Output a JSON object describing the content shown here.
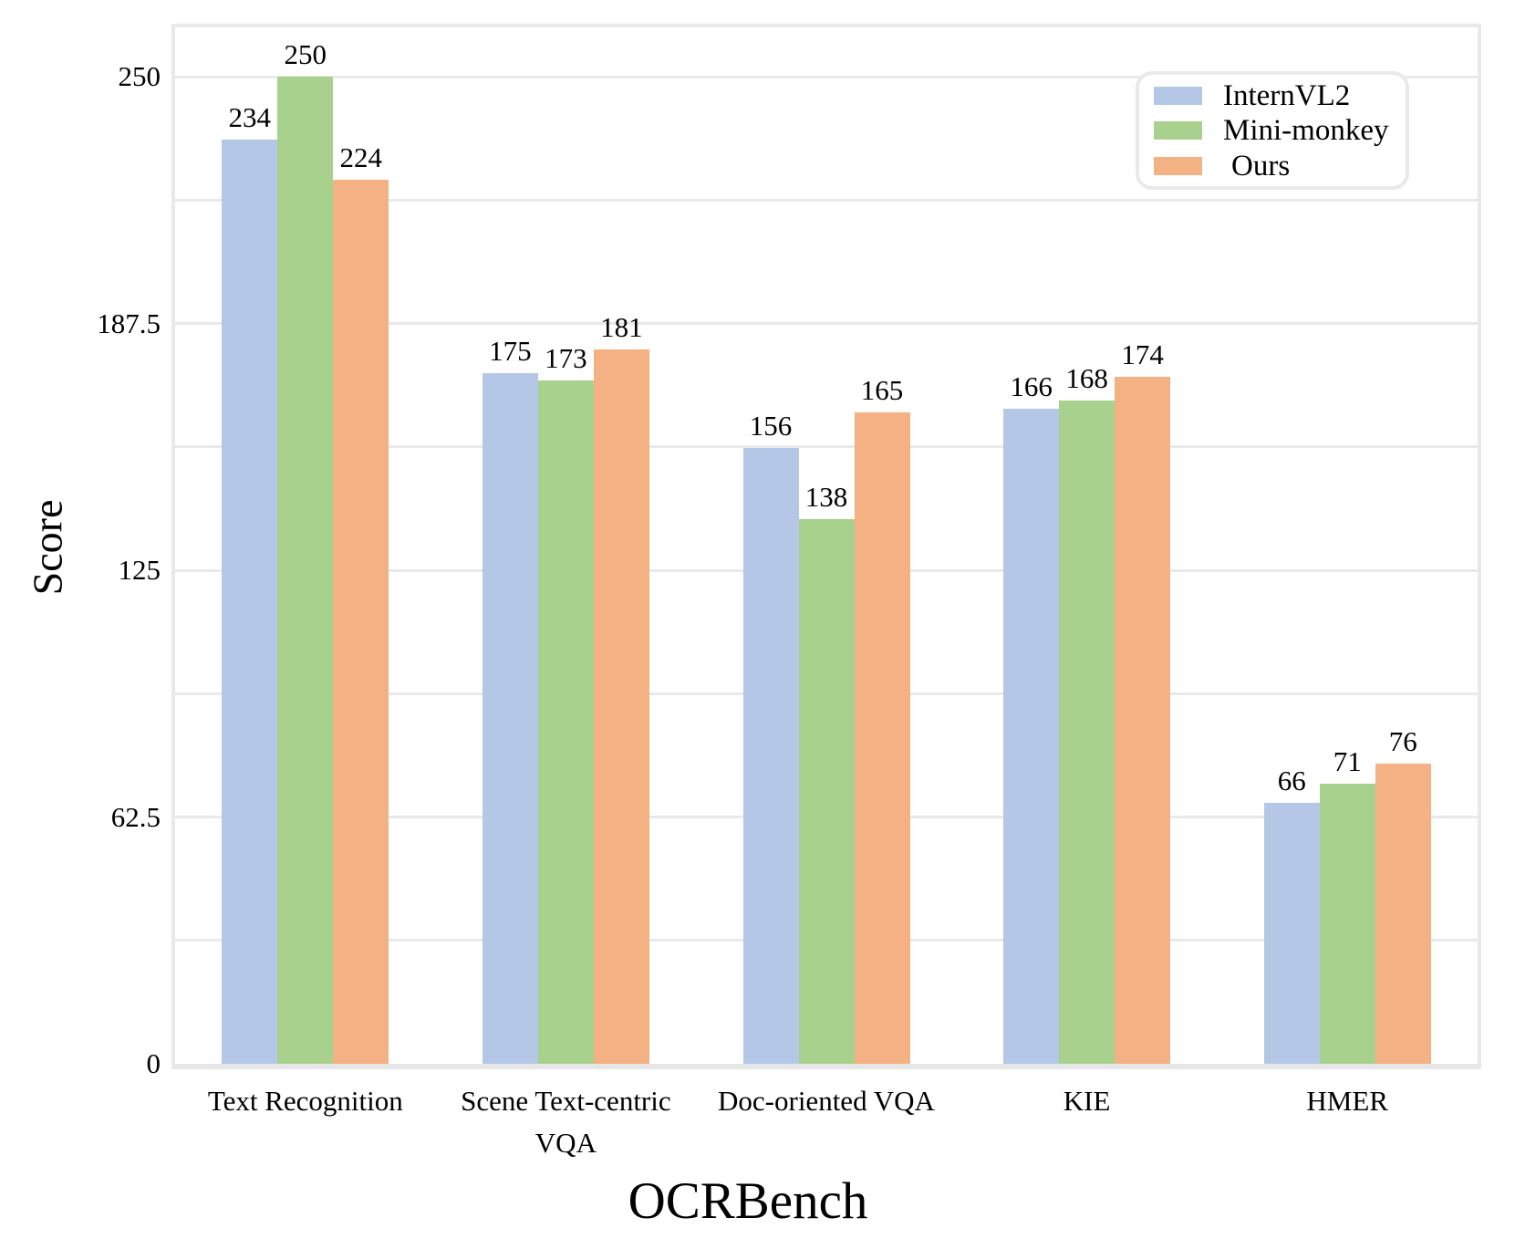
{
  "chart_data": {
    "type": "bar",
    "title": "",
    "xlabel": "OCRBench",
    "ylabel": "Score",
    "categories": [
      "Text Recognition",
      "Scene Text-centric VQA",
      "Doc-oriented VQA",
      "KIE",
      "HMER"
    ],
    "series": [
      {
        "name": "InternVL2",
        "color": "#b4c7e7",
        "values": [
          234,
          175,
          156,
          166,
          66
        ]
      },
      {
        "name": "Mini-monkey",
        "color": "#a9d18e",
        "values": [
          250,
          173,
          138,
          168,
          71
        ]
      },
      {
        "name": "Ours",
        "color": "#f4b183",
        "values": [
          224,
          181,
          165,
          174,
          76
        ]
      }
    ],
    "bar_value_labels_shown": true,
    "yticks": [
      0,
      62.5,
      125,
      187.5,
      250
    ],
    "ylim": [
      0,
      262.5
    ],
    "minor_gridline_step": 31.25,
    "grid": true,
    "gridline_color": "#e9e9e9",
    "plot_background": "#ffffff",
    "legend_position": "upper right"
  }
}
